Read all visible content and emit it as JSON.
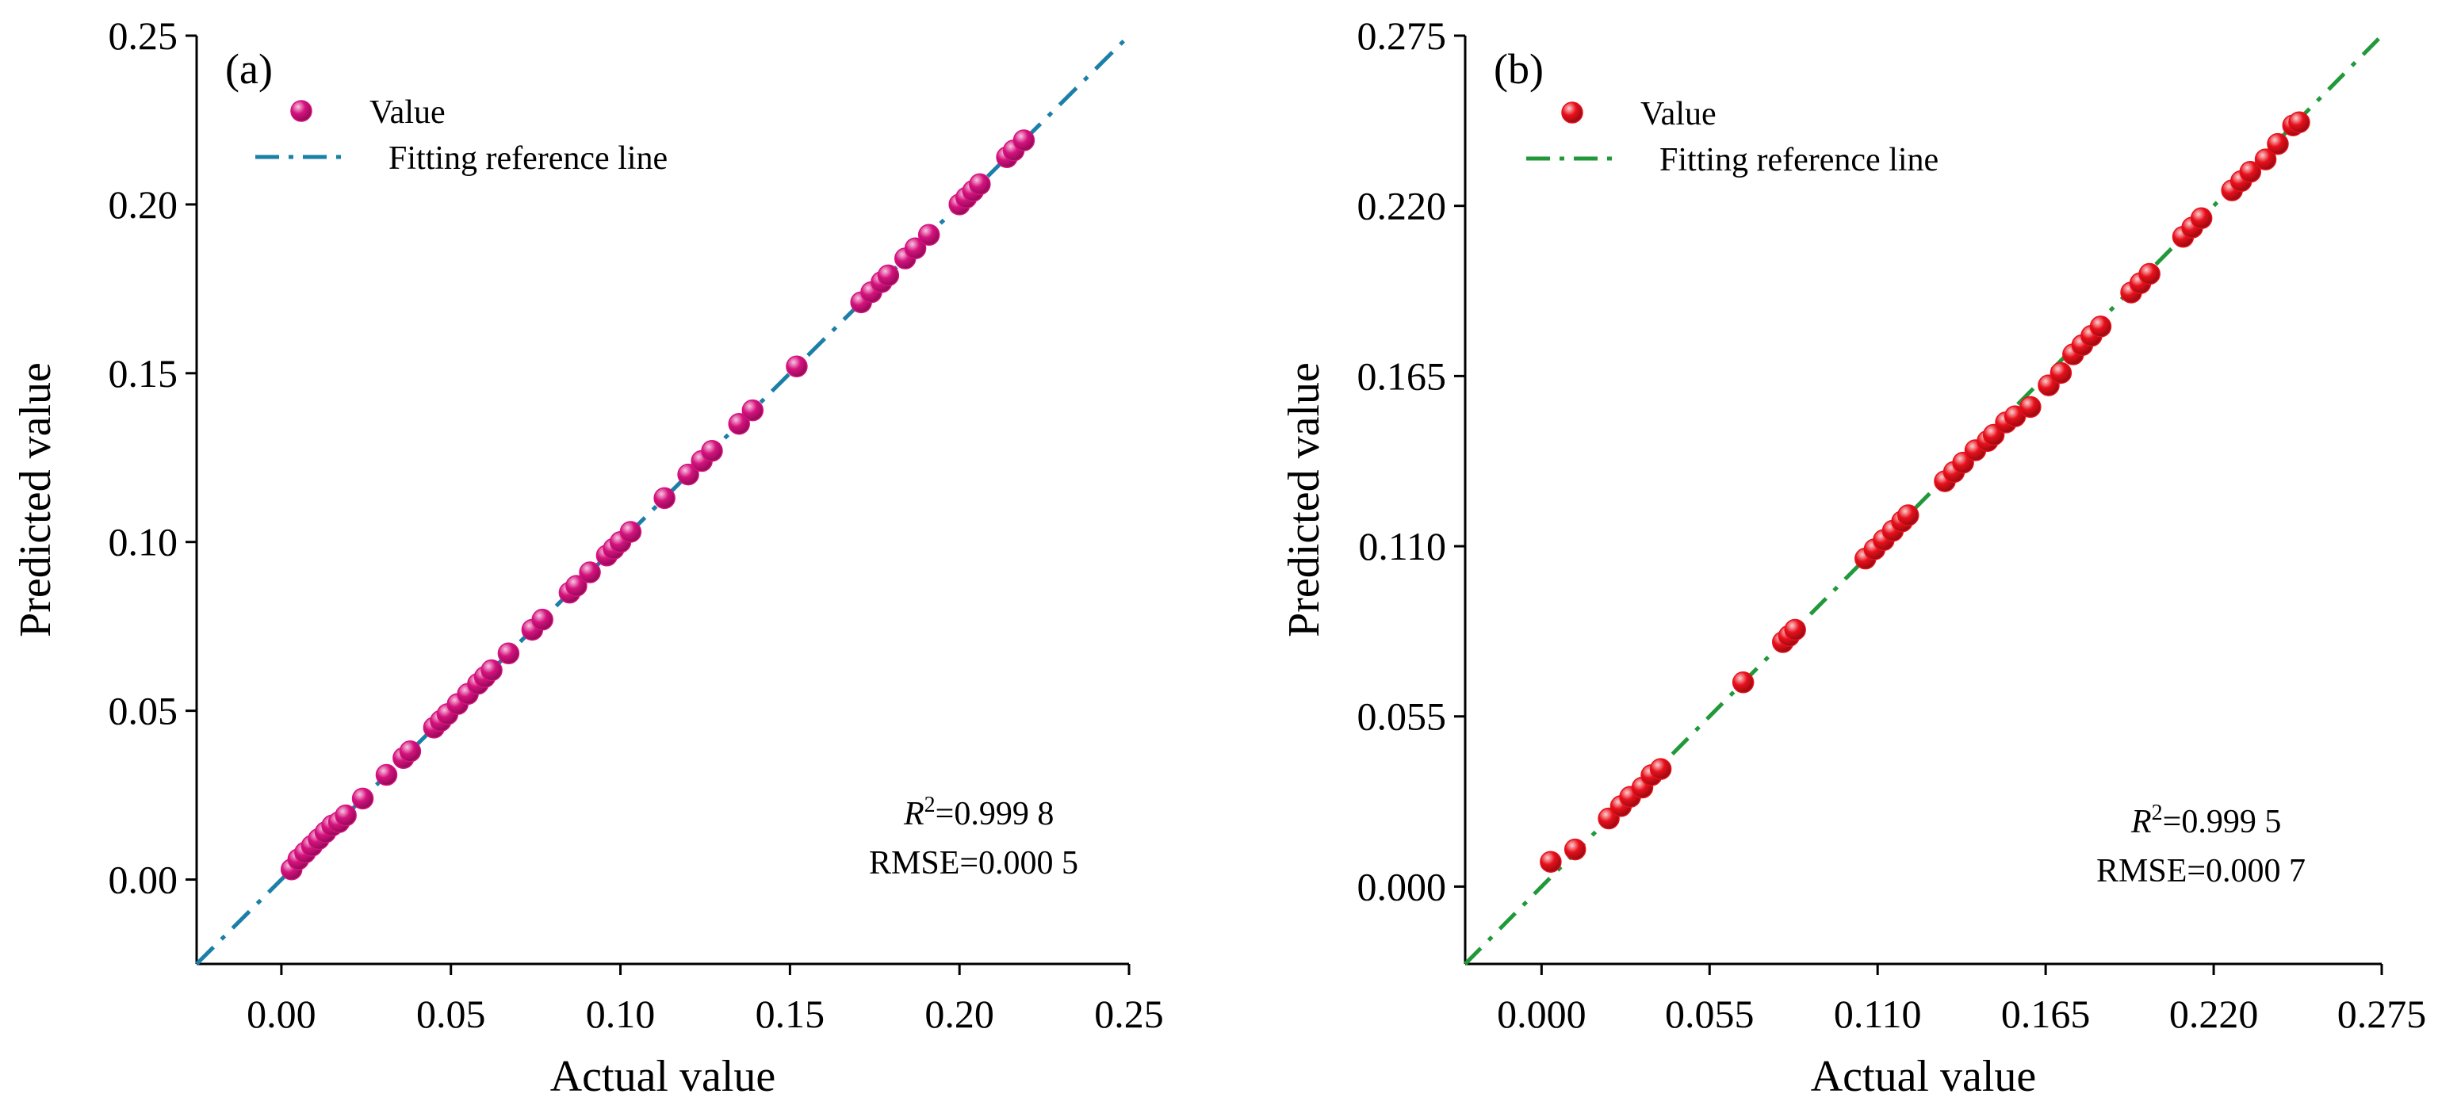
{
  "chart_data": [
    {
      "type": "scatter",
      "panel_label": "(a)",
      "xlabel": "Actual value",
      "ylabel": "Predicted value",
      "xlim": [
        -0.025,
        0.25
      ],
      "ylim": [
        -0.025,
        0.25
      ],
      "xticks": [
        0.0,
        0.05,
        0.1,
        0.15,
        0.2,
        0.25
      ],
      "yticks": [
        0.0,
        0.05,
        0.1,
        0.15,
        0.2,
        0.25
      ],
      "xtick_labels": [
        "0.00",
        "0.05",
        "0.10",
        "0.15",
        "0.20",
        "0.25"
      ],
      "ytick_labels": [
        "0.00",
        "0.05",
        "0.10",
        "0.15",
        "0.20",
        "0.25"
      ],
      "legend": {
        "placement": "top-left",
        "marker_label": "Value",
        "line_label": "Fitting reference line"
      },
      "stats": {
        "r2_symbol": "R",
        "r2_superscript": "2",
        "r2_value": "=0.999 8",
        "rmse": "RMSE=0.000 5"
      },
      "colors": {
        "marker": "#d6127e",
        "line": "#1b7fa7"
      },
      "series": [
        {
          "name": "Value",
          "points": [
            [
              0.003,
              0.003
            ],
            [
              0.005,
              0.006
            ],
            [
              0.007,
              0.008
            ],
            [
              0.009,
              0.01
            ],
            [
              0.011,
              0.012
            ],
            [
              0.013,
              0.014
            ],
            [
              0.015,
              0.016
            ],
            [
              0.017,
              0.017
            ],
            [
              0.019,
              0.019
            ],
            [
              0.024,
              0.024
            ],
            [
              0.031,
              0.031
            ],
            [
              0.036,
              0.036
            ],
            [
              0.038,
              0.038
            ],
            [
              0.045,
              0.045
            ],
            [
              0.047,
              0.047
            ],
            [
              0.049,
              0.049
            ],
            [
              0.052,
              0.052
            ],
            [
              0.055,
              0.055
            ],
            [
              0.058,
              0.058
            ],
            [
              0.06,
              0.06
            ],
            [
              0.062,
              0.062
            ],
            [
              0.067,
              0.067
            ],
            [
              0.074,
              0.074
            ],
            [
              0.077,
              0.077
            ],
            [
              0.085,
              0.085
            ],
            [
              0.087,
              0.087
            ],
            [
              0.091,
              0.091
            ],
            [
              0.096,
              0.096
            ],
            [
              0.098,
              0.098
            ],
            [
              0.1,
              0.1
            ],
            [
              0.103,
              0.103
            ],
            [
              0.113,
              0.113
            ],
            [
              0.12,
              0.12
            ],
            [
              0.124,
              0.124
            ],
            [
              0.127,
              0.127
            ],
            [
              0.135,
              0.135
            ],
            [
              0.139,
              0.139
            ],
            [
              0.152,
              0.152
            ],
            [
              0.171,
              0.171
            ],
            [
              0.174,
              0.174
            ],
            [
              0.177,
              0.177
            ],
            [
              0.179,
              0.179
            ],
            [
              0.184,
              0.184
            ],
            [
              0.187,
              0.187
            ],
            [
              0.191,
              0.191
            ],
            [
              0.2,
              0.2
            ],
            [
              0.202,
              0.202
            ],
            [
              0.204,
              0.204
            ],
            [
              0.206,
              0.206
            ],
            [
              0.214,
              0.214
            ],
            [
              0.216,
              0.216
            ],
            [
              0.219,
              0.219
            ]
          ]
        },
        {
          "name": "Fitting reference line",
          "points": [
            [
              -0.025,
              -0.025
            ],
            [
              0.25,
              0.25
            ]
          ]
        }
      ]
    },
    {
      "type": "scatter",
      "panel_label": "(b)",
      "xlabel": "Actual value",
      "ylabel": "Predicted value",
      "xlim": [
        -0.025,
        0.275
      ],
      "ylim": [
        -0.025,
        0.275
      ],
      "xticks": [
        0.0,
        0.055,
        0.11,
        0.165,
        0.22,
        0.275
      ],
      "yticks": [
        0.0,
        0.055,
        0.11,
        0.165,
        0.22,
        0.275
      ],
      "xtick_labels": [
        "0.000",
        "0.055",
        "0.110",
        "0.165",
        "0.220",
        "0.275"
      ],
      "ytick_labels": [
        "0.000",
        "0.055",
        "0.110",
        "0.165",
        "0.220",
        "0.275"
      ],
      "legend": {
        "placement": "top-left",
        "marker_label": "Value",
        "line_label": "Fitting reference line"
      },
      "stats": {
        "r2_symbol": "R",
        "r2_superscript": "2",
        "r2_value": "=0.999 5",
        "rmse": "RMSE=0.000 7"
      },
      "colors": {
        "marker": "#e8101c",
        "line": "#21993a"
      },
      "series": [
        {
          "name": "Value",
          "points": [
            [
              0.003,
              0.008
            ],
            [
              0.011,
              0.012
            ],
            [
              0.022,
              0.022
            ],
            [
              0.026,
              0.026
            ],
            [
              0.029,
              0.029
            ],
            [
              0.033,
              0.032
            ],
            [
              0.036,
              0.036
            ],
            [
              0.039,
              0.038
            ],
            [
              0.066,
              0.066
            ],
            [
              0.079,
              0.079
            ],
            [
              0.081,
              0.081
            ],
            [
              0.083,
              0.083
            ],
            [
              0.106,
              0.106
            ],
            [
              0.109,
              0.109
            ],
            [
              0.112,
              0.112
            ],
            [
              0.115,
              0.115
            ],
            [
              0.118,
              0.118
            ],
            [
              0.12,
              0.12
            ],
            [
              0.132,
              0.131
            ],
            [
              0.135,
              0.134
            ],
            [
              0.138,
              0.137
            ],
            [
              0.142,
              0.141
            ],
            [
              0.146,
              0.144
            ],
            [
              0.148,
              0.146
            ],
            [
              0.152,
              0.15
            ],
            [
              0.155,
              0.152
            ],
            [
              0.16,
              0.155
            ],
            [
              0.166,
              0.162
            ],
            [
              0.17,
              0.166
            ],
            [
              0.174,
              0.172
            ],
            [
              0.177,
              0.175
            ],
            [
              0.18,
              0.178
            ],
            [
              0.183,
              0.181
            ],
            [
              0.193,
              0.192
            ],
            [
              0.196,
              0.195
            ],
            [
              0.199,
              0.198
            ],
            [
              0.21,
              0.21
            ],
            [
              0.213,
              0.213
            ],
            [
              0.216,
              0.216
            ],
            [
              0.226,
              0.225
            ],
            [
              0.229,
              0.228
            ],
            [
              0.232,
              0.231
            ],
            [
              0.237,
              0.235
            ],
            [
              0.241,
              0.24
            ],
            [
              0.246,
              0.246
            ],
            [
              0.248,
              0.247
            ]
          ]
        },
        {
          "name": "Fitting reference line",
          "points": [
            [
              -0.025,
              -0.025
            ],
            [
              0.275,
              0.275
            ]
          ]
        }
      ]
    }
  ]
}
